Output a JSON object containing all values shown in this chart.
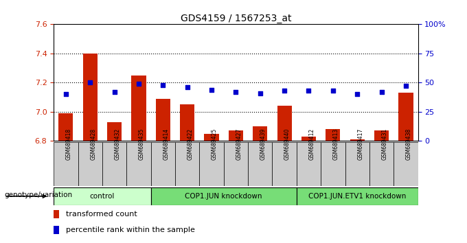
{
  "title": "GDS4159 / 1567253_at",
  "samples": [
    "GSM689418",
    "GSM689428",
    "GSM689432",
    "GSM689435",
    "GSM689414",
    "GSM689422",
    "GSM689425",
    "GSM689427",
    "GSM689439",
    "GSM689440",
    "GSM689412",
    "GSM689413",
    "GSM689417",
    "GSM689431",
    "GSM689438"
  ],
  "bar_values": [
    6.99,
    7.4,
    6.93,
    7.25,
    7.09,
    7.05,
    6.85,
    6.87,
    6.9,
    7.04,
    6.83,
    6.88,
    6.81,
    6.87,
    7.13
  ],
  "percentile_values": [
    40,
    50,
    42,
    49,
    48,
    46,
    44,
    42,
    41,
    43,
    43,
    43,
    40,
    42,
    47
  ],
  "ylim": [
    6.8,
    7.6
  ],
  "yticks": [
    6.8,
    7.0,
    7.2,
    7.4,
    7.6
  ],
  "right_yticks": [
    0,
    25,
    50,
    75,
    100
  ],
  "right_ytick_labels": [
    "0",
    "25",
    "50",
    "75",
    "100%"
  ],
  "bar_color": "#cc2200",
  "dot_color": "#0000cc",
  "groups": [
    {
      "label": "control",
      "start": 0,
      "end": 3,
      "color": "#ccffcc"
    },
    {
      "label": "COP1.JUN knockdown",
      "start": 4,
      "end": 9,
      "color": "#77dd77"
    },
    {
      "label": "COP1.JUN.ETV1 knockdown",
      "start": 10,
      "end": 14,
      "color": "#77dd77"
    }
  ],
  "genotype_label": "genotype/variation",
  "legend_bar_label": "transformed count",
  "legend_dot_label": "percentile rank within the sample",
  "bg_color": "#ffffff",
  "plot_bg": "#ffffff",
  "tick_label_color_left": "#cc2200",
  "tick_label_color_right": "#0000cc",
  "xtick_bg_color": "#cccccc",
  "base": 6.8
}
